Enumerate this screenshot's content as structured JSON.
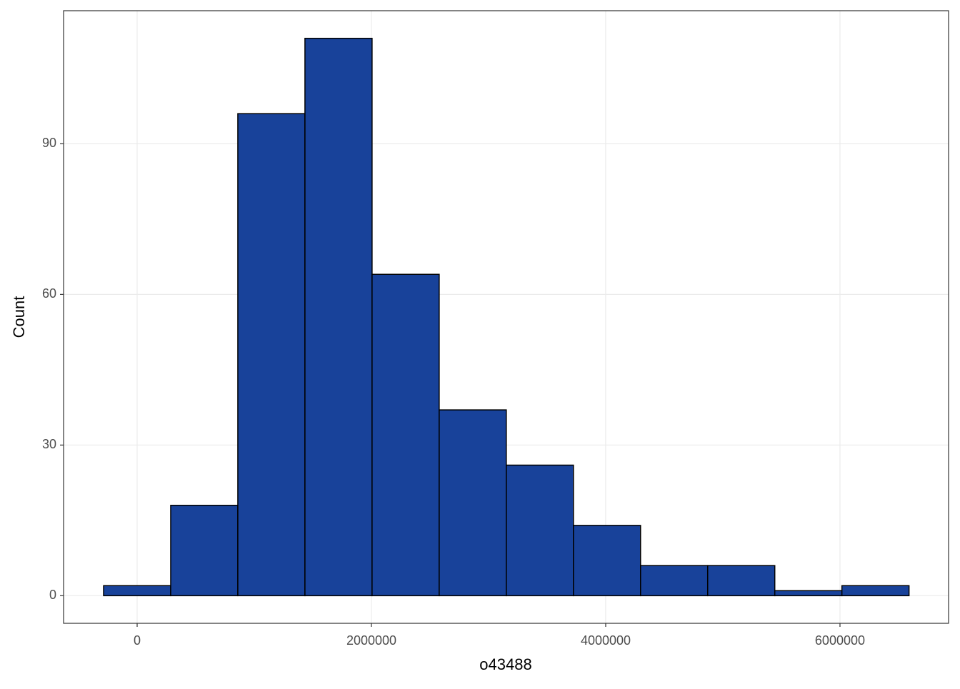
{
  "chart_data": {
    "type": "histogram",
    "x_label": "o43488",
    "y_label": "Count",
    "bins": [
      -286500,
      286500,
      859500,
      1432500,
      2005500,
      2578500,
      3151500,
      3724500,
      4297500,
      4870500,
      5443500,
      6016500,
      6589500
    ],
    "values": [
      2,
      18,
      96,
      111,
      64,
      37,
      26,
      14,
      6,
      6,
      1,
      2
    ],
    "color": "#18429a",
    "edge_color": "#000000",
    "xlim": [
      -628000,
      6927000
    ],
    "xticks": [
      0,
      2000000,
      4000000,
      6000000
    ],
    "ylim": [
      -5.5,
      116.5
    ],
    "yticks": [
      0,
      30,
      60,
      90
    ],
    "grid": true
  }
}
